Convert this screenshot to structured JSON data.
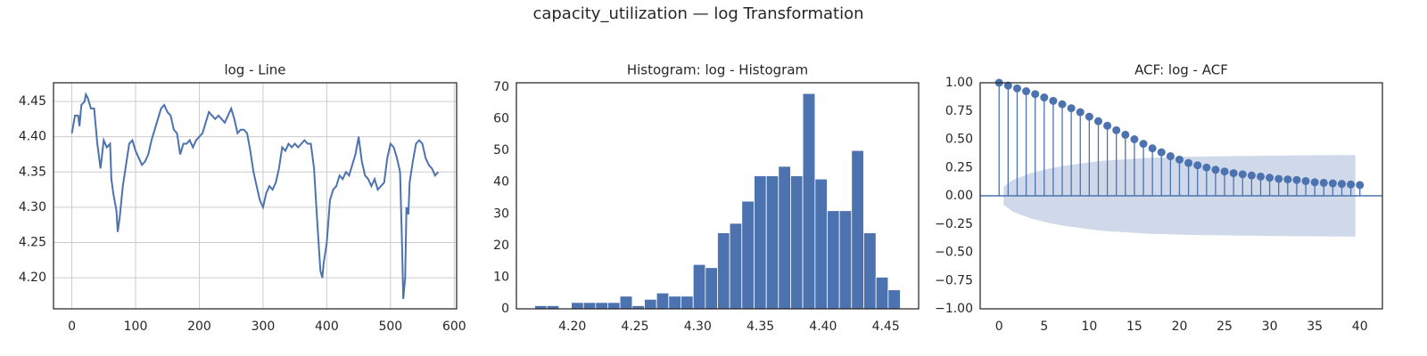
{
  "title": "capacity_utilization — log Transformation",
  "chart_data": [
    {
      "type": "line",
      "title": "log - Line",
      "grid": true,
      "color": "#4c72b0",
      "xlim": [
        -28.75,
        603.75
      ],
      "ylim": [
        4.156,
        4.4765
      ],
      "xticks": [
        0,
        100,
        200,
        300,
        400,
        500,
        600
      ],
      "yticks": [
        {
          "value": 4.2,
          "label": "4.20"
        },
        {
          "value": 4.25,
          "label": "4.25"
        },
        {
          "value": 4.3,
          "label": "4.30"
        },
        {
          "value": 4.35,
          "label": "4.35"
        },
        {
          "value": 4.4,
          "label": "4.40"
        },
        {
          "value": 4.45,
          "label": "4.45"
        }
      ],
      "x": [
        0,
        5,
        10,
        12,
        15,
        20,
        22,
        25,
        30,
        35,
        40,
        45,
        50,
        55,
        60,
        62,
        65,
        70,
        72,
        75,
        80,
        85,
        90,
        95,
        100,
        105,
        110,
        115,
        120,
        125,
        130,
        135,
        140,
        145,
        150,
        155,
        160,
        165,
        170,
        175,
        180,
        185,
        190,
        195,
        200,
        205,
        210,
        215,
        220,
        225,
        230,
        235,
        240,
        245,
        250,
        255,
        260,
        265,
        270,
        275,
        280,
        285,
        290,
        295,
        300,
        305,
        310,
        315,
        320,
        325,
        330,
        335,
        340,
        345,
        350,
        355,
        360,
        365,
        370,
        375,
        380,
        385,
        390,
        393,
        395,
        400,
        405,
        410,
        415,
        420,
        425,
        430,
        435,
        440,
        445,
        450,
        455,
        460,
        465,
        470,
        475,
        480,
        485,
        490,
        495,
        500,
        505,
        510,
        515,
        518,
        520,
        523,
        525,
        528,
        530,
        535,
        540,
        545,
        550,
        555,
        560,
        565,
        570,
        575
      ],
      "values": [
        4.405,
        4.43,
        4.43,
        4.415,
        4.445,
        4.45,
        4.46,
        4.455,
        4.44,
        4.44,
        4.39,
        4.355,
        4.395,
        4.385,
        4.39,
        4.34,
        4.32,
        4.295,
        4.265,
        4.285,
        4.33,
        4.36,
        4.39,
        4.395,
        4.38,
        4.37,
        4.36,
        4.365,
        4.375,
        4.395,
        4.41,
        4.425,
        4.44,
        4.445,
        4.435,
        4.43,
        4.41,
        4.405,
        4.375,
        4.39,
        4.39,
        4.395,
        4.385,
        4.395,
        4.4,
        4.405,
        4.42,
        4.435,
        4.43,
        4.425,
        4.43,
        4.425,
        4.42,
        4.43,
        4.44,
        4.425,
        4.405,
        4.41,
        4.41,
        4.405,
        4.38,
        4.35,
        4.33,
        4.31,
        4.3,
        4.32,
        4.33,
        4.325,
        4.335,
        4.355,
        4.385,
        4.38,
        4.39,
        4.385,
        4.39,
        4.385,
        4.39,
        4.395,
        4.39,
        4.39,
        4.355,
        4.28,
        4.21,
        4.2,
        4.22,
        4.25,
        4.31,
        4.325,
        4.33,
        4.345,
        4.34,
        4.35,
        4.345,
        4.36,
        4.375,
        4.4,
        4.365,
        4.345,
        4.34,
        4.33,
        4.34,
        4.325,
        4.33,
        4.335,
        4.37,
        4.39,
        4.385,
        4.37,
        4.35,
        4.25,
        4.17,
        4.2,
        4.3,
        4.29,
        4.335,
        4.365,
        4.39,
        4.395,
        4.39,
        4.37,
        4.36,
        4.355,
        4.345,
        4.35
      ]
    },
    {
      "type": "histogram",
      "title": "Histogram: log - Histogram",
      "grid": false,
      "color": "#4c72b0",
      "xlim": [
        4.1554,
        4.4762
      ],
      "ylim": [
        0,
        71.4
      ],
      "xticks": [
        {
          "value": 4.2,
          "label": "4.20"
        },
        {
          "value": 4.25,
          "label": "4.25"
        },
        {
          "value": 4.3,
          "label": "4.30"
        },
        {
          "value": 4.35,
          "label": "4.35"
        },
        {
          "value": 4.4,
          "label": "4.40"
        },
        {
          "value": 4.45,
          "label": "4.45"
        }
      ],
      "yticks": [
        0,
        10,
        20,
        30,
        40,
        50,
        60,
        70
      ],
      "bins": [
        4.17,
        4.1797,
        4.1894,
        4.1992,
        4.2089,
        4.2186,
        4.2283,
        4.238,
        4.2478,
        4.2575,
        4.2672,
        4.2769,
        4.2866,
        4.2964,
        4.3061,
        4.3158,
        4.3255,
        4.3352,
        4.345,
        4.3547,
        4.3644,
        4.3741,
        4.3838,
        4.3936,
        4.4033,
        4.413,
        4.4227,
        4.4324,
        4.4422,
        4.4519,
        4.4616
      ],
      "values": [
        1,
        1,
        0,
        2,
        2,
        2,
        2,
        4,
        1,
        3,
        5,
        4,
        4,
        14,
        13,
        24,
        27,
        34,
        42,
        42,
        45,
        42,
        68,
        41,
        31,
        31,
        50,
        24,
        10,
        6
      ]
    },
    {
      "type": "stem",
      "title": "ACF: log - ACF",
      "grid": false,
      "color": "#4c72b0",
      "band_color": "#cfd9ea",
      "xlim": [
        -2.1,
        42.5
      ],
      "ylim": [
        -1,
        1
      ],
      "xticks": [
        0,
        5,
        10,
        15,
        20,
        25,
        30,
        35,
        40
      ],
      "yticks": [
        {
          "value": -1,
          "label": "−1.00"
        },
        {
          "value": -0.75,
          "label": "−0.75"
        },
        {
          "value": -0.5,
          "label": "−0.50"
        },
        {
          "value": -0.25,
          "label": "−0.25"
        },
        {
          "value": 0,
          "label": "0.00"
        },
        {
          "value": 0.25,
          "label": "0.25"
        },
        {
          "value": 0.5,
          "label": "0.50"
        },
        {
          "value": 0.75,
          "label": "0.75"
        },
        {
          "value": 1,
          "label": "1.00"
        }
      ],
      "x": [
        0,
        1,
        2,
        3,
        4,
        5,
        6,
        7,
        8,
        9,
        10,
        11,
        12,
        13,
        14,
        15,
        16,
        17,
        18,
        19,
        20,
        21,
        22,
        23,
        24,
        25,
        26,
        27,
        28,
        29,
        30,
        31,
        32,
        33,
        34,
        35,
        36,
        37,
        38,
        39,
        40
      ],
      "values": [
        1,
        0.975,
        0.95,
        0.925,
        0.9,
        0.87,
        0.84,
        0.81,
        0.775,
        0.74,
        0.7,
        0.66,
        0.62,
        0.58,
        0.54,
        0.5,
        0.46,
        0.42,
        0.385,
        0.35,
        0.32,
        0.29,
        0.27,
        0.25,
        0.23,
        0.215,
        0.2,
        0.19,
        0.18,
        0.17,
        0.16,
        0.15,
        0.145,
        0.14,
        0.13,
        0.12,
        0.115,
        0.11,
        0.105,
        0.1,
        0.095
      ],
      "band": {
        "x": [
          1,
          2,
          3,
          4,
          5,
          6,
          7,
          8,
          9,
          10,
          11,
          12,
          13,
          14,
          15,
          16,
          17,
          18,
          19,
          20,
          21,
          22,
          23,
          24,
          25,
          26,
          27,
          28,
          29,
          30,
          31,
          32,
          33,
          34,
          35,
          36,
          37,
          38,
          39,
          40
        ],
        "values": [
          0.08,
          0.14,
          0.17,
          0.2,
          0.22,
          0.24,
          0.255,
          0.27,
          0.28,
          0.29,
          0.3,
          0.31,
          0.315,
          0.32,
          0.325,
          0.33,
          0.335,
          0.338,
          0.34,
          0.343,
          0.345,
          0.346,
          0.347,
          0.348,
          0.349,
          0.35,
          0.351,
          0.352,
          0.353,
          0.354,
          0.355,
          0.356,
          0.357,
          0.358,
          0.358,
          0.359,
          0.359,
          0.36,
          0.36,
          0.36
        ]
      }
    }
  ]
}
